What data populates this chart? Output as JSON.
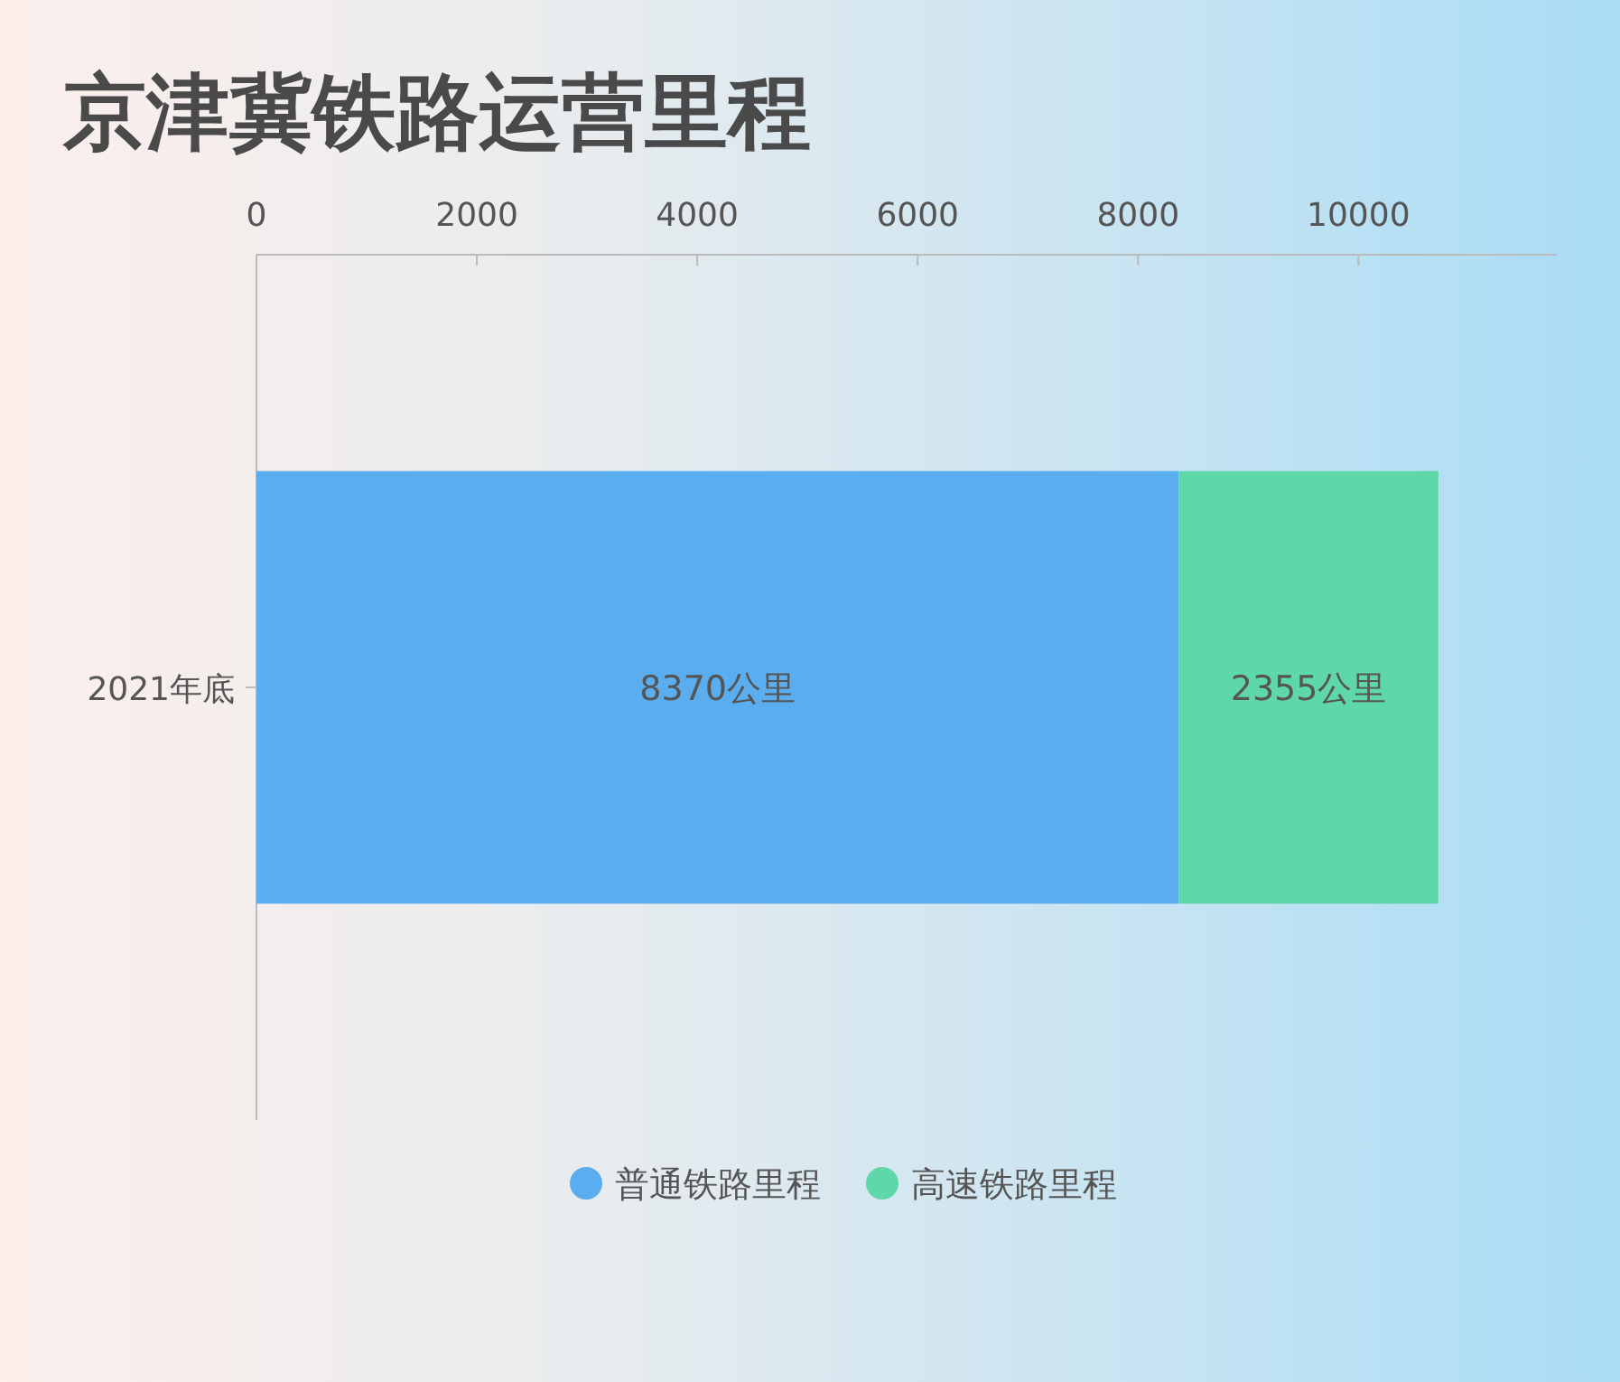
{
  "chart_data": {
    "type": "bar",
    "title": "京津冀铁路运营里程",
    "orientation": "horizontal",
    "stacked": true,
    "categories": [
      "2021年底"
    ],
    "xlim": [
      0,
      11800
    ],
    "xticks": [
      0,
      2000,
      4000,
      6000,
      8000,
      10000
    ],
    "legend": "bottom",
    "series": [
      {
        "name": "普通铁路里程",
        "color": "#5aaef0",
        "values": [
          8370
        ],
        "value_labels": [
          "8370公里"
        ]
      },
      {
        "name": "高速铁路里程",
        "color": "#5fd8a9",
        "values": [
          2355
        ],
        "value_labels": [
          "2355公里"
        ]
      }
    ]
  }
}
